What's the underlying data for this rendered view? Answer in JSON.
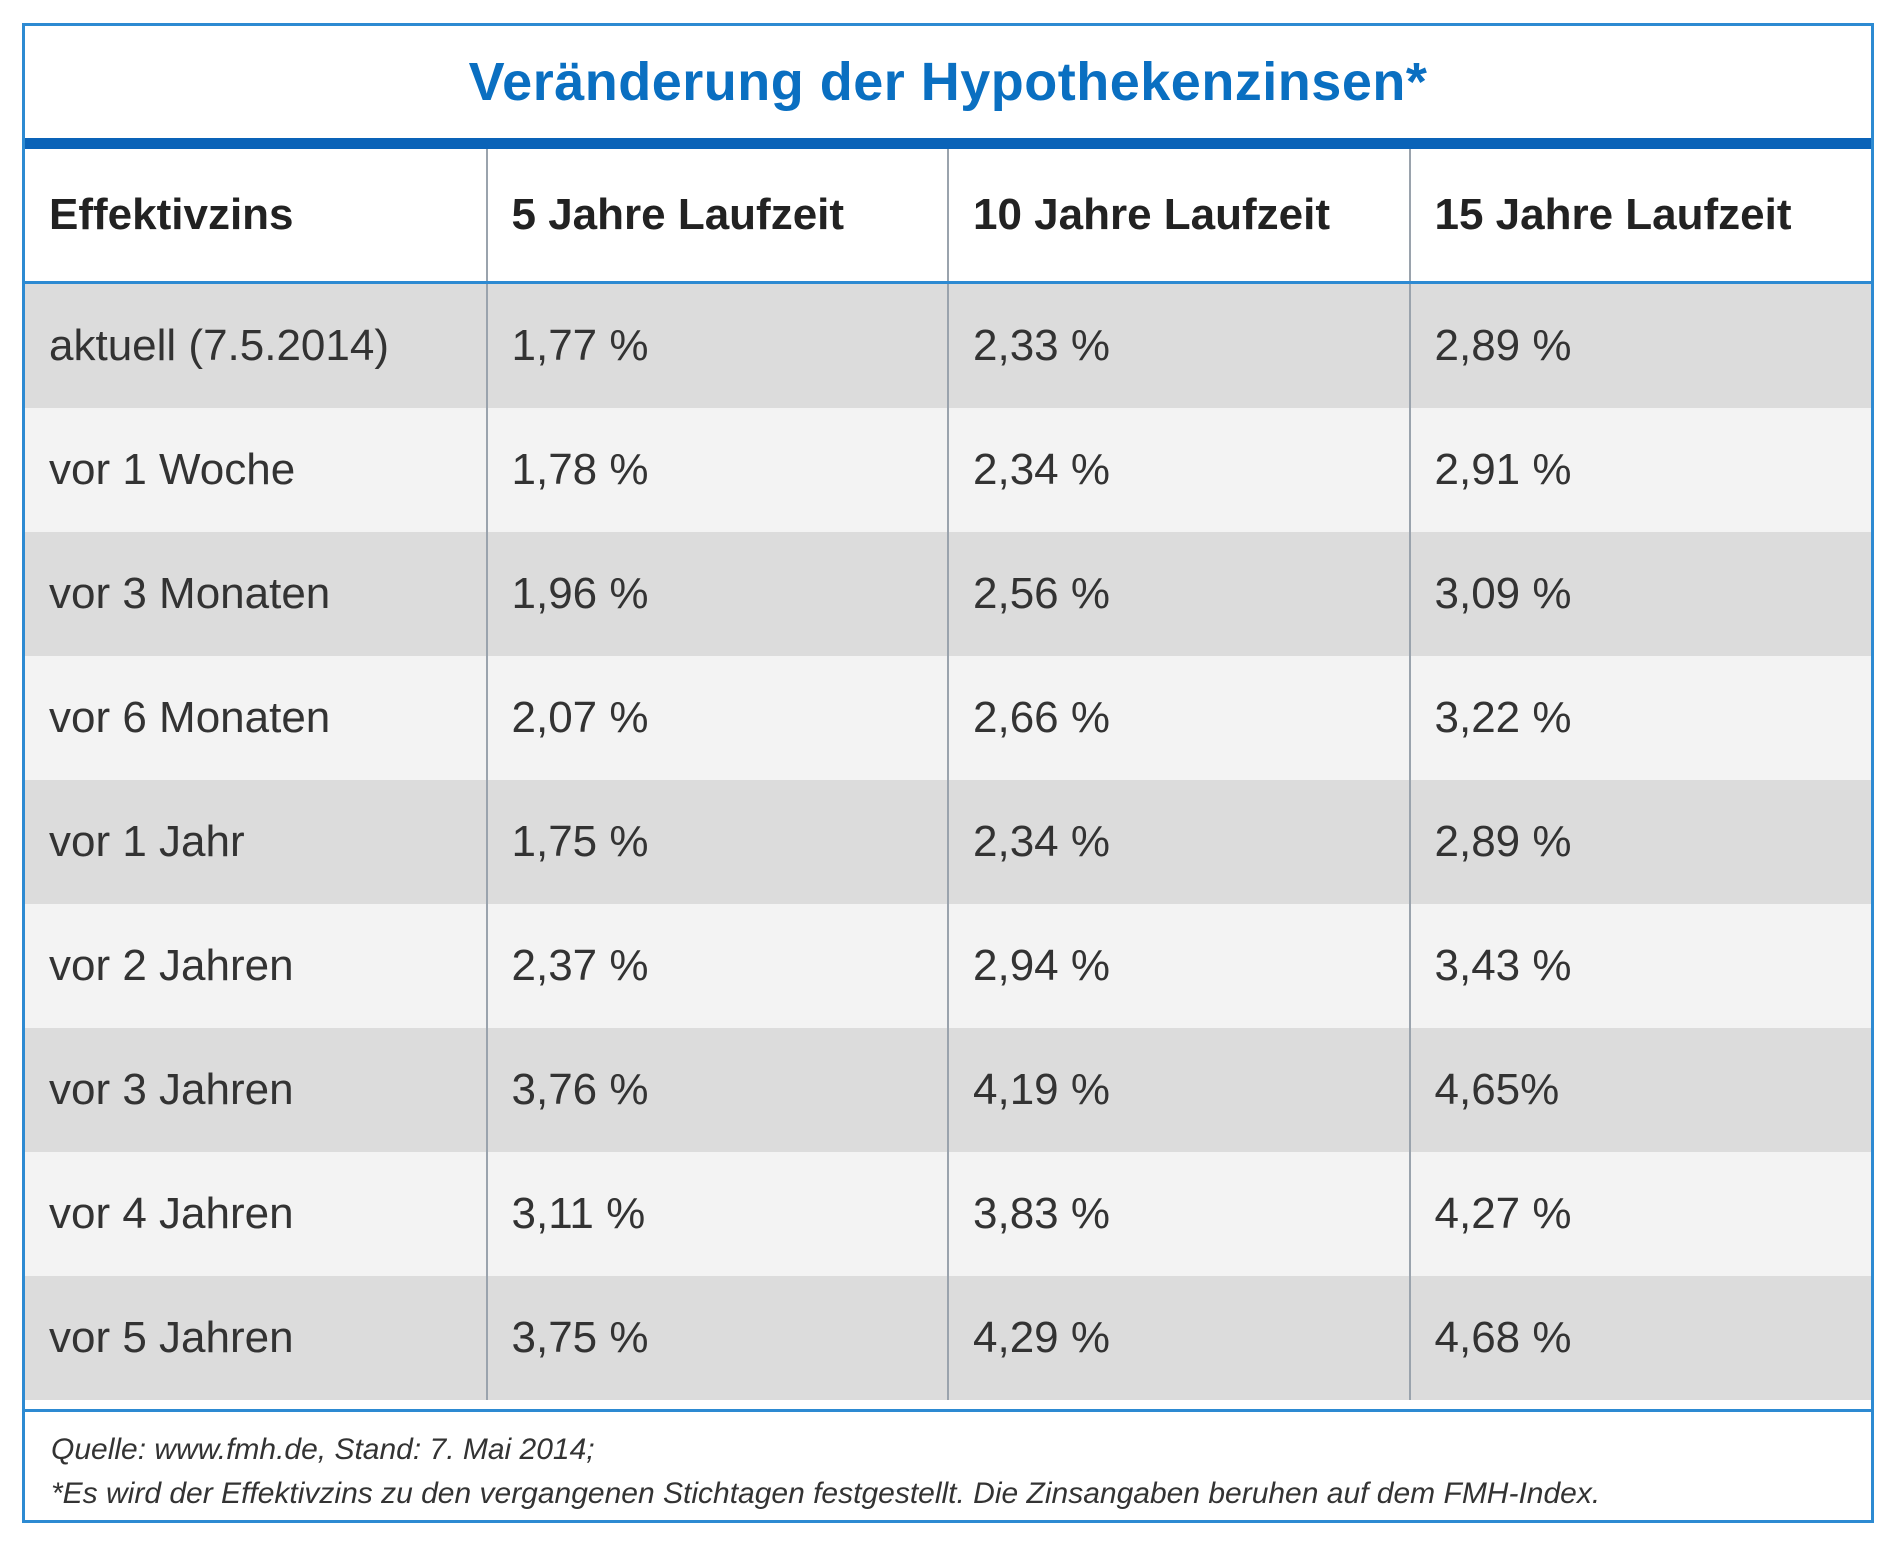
{
  "colors": {
    "title": "#0a6fc1",
    "frame": "#2d8ad2",
    "title_rule": "#0a63b8",
    "row_dark": "#dcdcdc",
    "row_light": "#f3f3f3",
    "text": "#333333"
  },
  "chart_data": {
    "type": "table",
    "title": "Veränderung der Hypothekenzinsen*",
    "columns": [
      "Effektivzins",
      "5 Jahre Laufzeit",
      "10 Jahre Laufzeit",
      "15 Jahre Laufzeit"
    ],
    "rows": [
      [
        "aktuell (7.5.2014)",
        "1,77 %",
        "2,33 %",
        "2,89 %"
      ],
      [
        "vor 1 Woche",
        "1,78 %",
        "2,34 %",
        "2,91 %"
      ],
      [
        "vor 3 Monaten",
        "1,96 %",
        "2,56 %",
        "3,09 %"
      ],
      [
        "vor 6 Monaten",
        "2,07 %",
        "2,66 %",
        "3,22 %"
      ],
      [
        "vor 1 Jahr",
        "1,75 %",
        "2,34 %",
        "2,89 %"
      ],
      [
        "vor 2 Jahren",
        "2,37 %",
        "2,94 %",
        "3,43 %"
      ],
      [
        "vor 3 Jahren",
        "3,76 %",
        "4,19 %",
        "4,65%"
      ],
      [
        "vor 4 Jahren",
        "3,11 %",
        "3,83 %",
        "4,27 %"
      ],
      [
        "vor 5 Jahren",
        "3,75 %",
        "4,29 %",
        "4,68 %"
      ]
    ],
    "footnotes": [
      "Quelle: www.fmh.de, Stand: 7. Mai 2014;",
      "*Es wird der Effektivzins zu den vergangenen Stichtagen festgestellt. Die Zinsangaben beruhen auf dem FMH-Index."
    ]
  }
}
